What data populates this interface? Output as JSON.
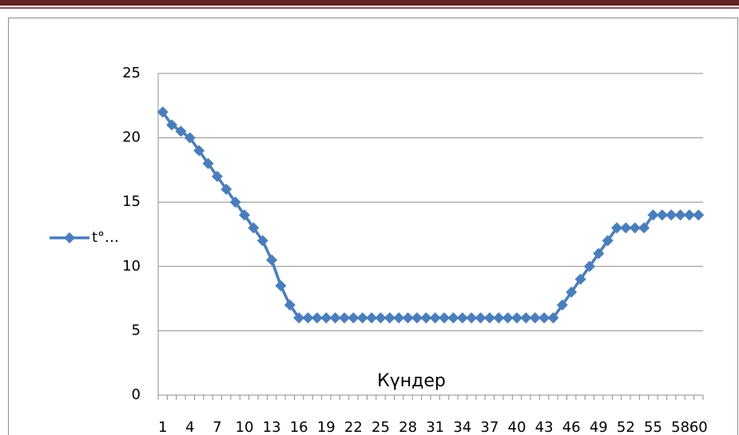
{
  "chart_data": {
    "type": "line",
    "categories": [
      1,
      null,
      null,
      4,
      null,
      null,
      7,
      null,
      null,
      10,
      null,
      null,
      13,
      null,
      null,
      16,
      null,
      null,
      19,
      null,
      null,
      22,
      null,
      null,
      25,
      null,
      null,
      28,
      null,
      null,
      31,
      null,
      null,
      34,
      null,
      null,
      37,
      null,
      null,
      40,
      null,
      null,
      43,
      null,
      null,
      46,
      null,
      null,
      49,
      null,
      null,
      52,
      null,
      null,
      55,
      null,
      null,
      58,
      null,
      60
    ],
    "series": [
      {
        "name": "t°…",
        "color": "#4a7ebb",
        "values": [
          22,
          21,
          20.5,
          20,
          19,
          18,
          17,
          16,
          15,
          14,
          13,
          12,
          10.5,
          8.5,
          7,
          6,
          6,
          6,
          6,
          6,
          6,
          6,
          6,
          6,
          6,
          6,
          6,
          6,
          6,
          6,
          6,
          6,
          6,
          6,
          6,
          6,
          6,
          6,
          6,
          6,
          6,
          6,
          6,
          6,
          7,
          8,
          9,
          10,
          11,
          12,
          13,
          13,
          13,
          13,
          14,
          14,
          14,
          14,
          14,
          14
        ]
      }
    ],
    "x_label": "Күндер",
    "ylim": [
      0,
      25
    ],
    "yticks": [
      0,
      5,
      10,
      15,
      20,
      25
    ],
    "grid": true,
    "legend": "left"
  }
}
